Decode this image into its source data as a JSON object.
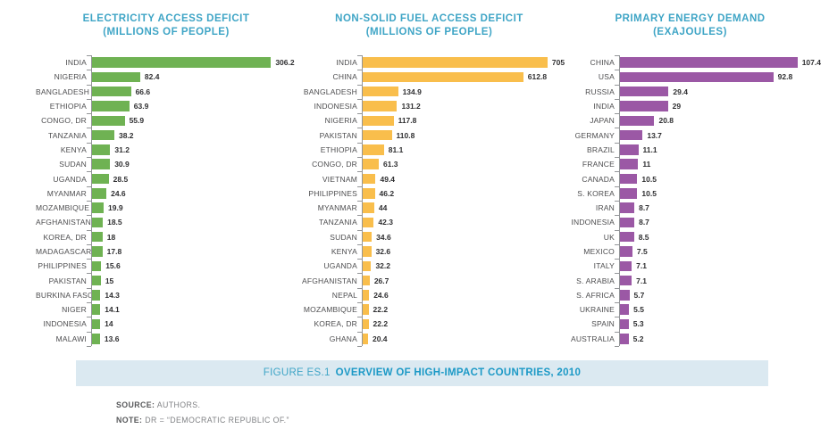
{
  "palette": {
    "chart_title_teal": "#3FA5C6",
    "caption_prefix_teal": "#3FA5C6",
    "caption_title_teal": "#1C99C6",
    "caption_band_bg": "#DBE9F1",
    "axis_gray": "#939598"
  },
  "chart_data": [
    {
      "type": "bar",
      "orientation": "horizontal",
      "title": "ELECTRICITY ACCESS DEFICIT",
      "subtitle": "(MILLIONS OF PEOPLE)",
      "color": "#6FB253",
      "xlim": [
        0,
        350
      ],
      "grid": false,
      "legend": false,
      "categories": [
        "INDIA",
        "NIGERIA",
        "BANGLADESH",
        "ETHIOPIA",
        "CONGO, DR",
        "TANZANIA",
        "KENYA",
        "SUDAN",
        "UGANDA",
        "MYANMAR",
        "MOZAMBIQUE",
        "AFGHANISTAN",
        "KOREA, DR",
        "MADAGASCAR",
        "PHILIPPINES",
        "PAKISTAN",
        "BURKINA FASO",
        "NIGER",
        "INDONESIA",
        "MALAWI"
      ],
      "values": [
        306.2,
        82.4,
        66.6,
        63.9,
        55.9,
        38.2,
        31.2,
        30.9,
        28.5,
        24.6,
        19.9,
        18.5,
        18,
        17.8,
        15.6,
        15,
        14.3,
        14.1,
        14,
        13.6
      ]
    },
    {
      "type": "bar",
      "orientation": "horizontal",
      "title": "NON-SOLID FUEL ACCESS DEFICIT",
      "subtitle": "(MILLIONS OF PEOPLE)",
      "color": "#F9BE4C",
      "xlim": [
        0,
        760
      ],
      "grid": false,
      "legend": false,
      "categories": [
        "INDIA",
        "CHINA",
        "BANGLADESH",
        "INDONESIA",
        "NIGERIA",
        "PAKISTAN",
        "ETHIOPIA",
        "CONGO, DR",
        "VIETNAM",
        "PHILIPPINES",
        "MYANMAR",
        "TANZANIA",
        "SUDAN",
        "KENYA",
        "UGANDA",
        "AFGHANISTAN",
        "NEPAL",
        "MOZAMBIQUE",
        "KOREA, DR",
        "GHANA"
      ],
      "values": [
        705,
        612.8,
        134.9,
        131.2,
        117.8,
        110.8,
        81.1,
        61.3,
        49.4,
        46.2,
        44,
        42.3,
        34.6,
        32.6,
        32.2,
        26.7,
        24.6,
        22.2,
        22.2,
        20.4
      ]
    },
    {
      "type": "bar",
      "orientation": "horizontal",
      "title": "PRIMARY ENERGY DEMAND",
      "subtitle": "(EXAJOULES)",
      "color": "#9B58A5",
      "xlim": [
        0,
        120
      ],
      "grid": false,
      "legend": false,
      "categories": [
        "CHINA",
        "USA",
        "RUSSIA",
        "INDIA",
        "JAPAN",
        "GERMANY",
        "BRAZIL",
        "FRANCE",
        "CANADA",
        "S. KOREA",
        "IRAN",
        "INDONESIA",
        "UK",
        "MEXICO",
        "ITALY",
        "S. ARABIA",
        "S. AFRICA",
        "UKRAINE",
        "SPAIN",
        "AUSTRALIA"
      ],
      "values": [
        107.4,
        92.8,
        29.4,
        29,
        20.8,
        13.7,
        11.1,
        11,
        10.5,
        10.5,
        8.7,
        8.7,
        8.5,
        7.5,
        7.1,
        7.1,
        5.7,
        5.5,
        5.3,
        5.2
      ]
    }
  ],
  "caption": {
    "prefix": "FIGURE ES.1",
    "title": "OVERVIEW OF HIGH-IMPACT COUNTRIES, 2010"
  },
  "footnotes": [
    {
      "label": "SOURCE:",
      "text": " AUTHORS."
    },
    {
      "label": "NOTE:",
      "text": " DR = “DEMOCRATIC REPUBLIC OF.”"
    }
  ]
}
